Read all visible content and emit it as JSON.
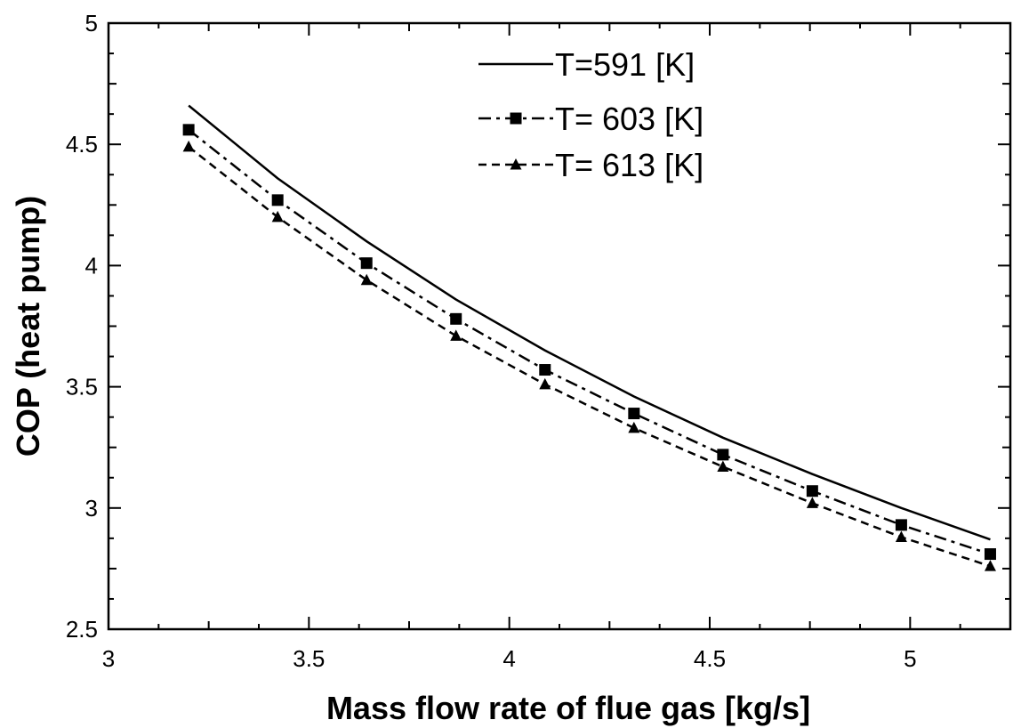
{
  "chart_data": {
    "type": "line",
    "title": "",
    "xlabel": "Mass flow rate of flue gas  [kg/s]",
    "ylabel": "COP (heat pump)",
    "xlim": [
      3,
      5.25
    ],
    "ylim": [
      2.5,
      5
    ],
    "x_ticks": [
      "3",
      "3.5",
      "4",
      "4.5",
      "5"
    ],
    "y_ticks": [
      "2.5",
      "3",
      "3.5",
      "4",
      "4.5",
      "5"
    ],
    "grid": false,
    "legend_position": "top-center",
    "x": [
      3.2,
      3.422,
      3.644,
      3.867,
      4.089,
      4.311,
      4.533,
      4.756,
      4.978,
      5.2
    ],
    "series": [
      {
        "name": "T=591 [K]",
        "marker": "none",
        "dash": "solid",
        "values": [
          4.66,
          4.36,
          4.1,
          3.86,
          3.65,
          3.46,
          3.29,
          3.14,
          3.0,
          2.87
        ]
      },
      {
        "name": "T= 603 [K]",
        "marker": "square",
        "dash": "dash-dot",
        "values": [
          4.56,
          4.27,
          4.01,
          3.78,
          3.57,
          3.39,
          3.22,
          3.07,
          2.93,
          2.81
        ]
      },
      {
        "name": "T= 613 [K]",
        "marker": "triangle",
        "dash": "dashed",
        "values": [
          4.49,
          4.2,
          3.94,
          3.71,
          3.51,
          3.33,
          3.17,
          3.02,
          2.88,
          2.76
        ]
      }
    ]
  }
}
